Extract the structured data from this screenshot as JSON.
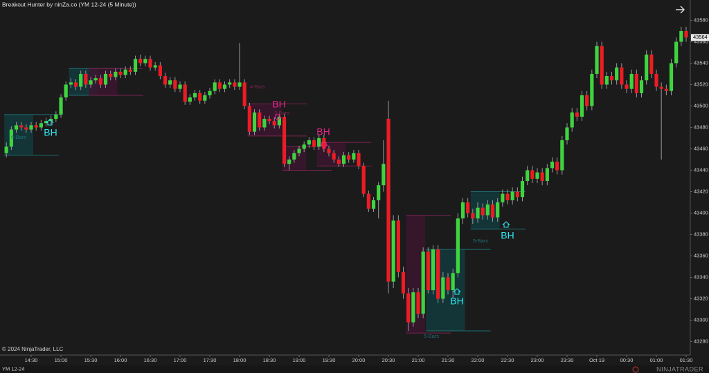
{
  "chart_data": {
    "type": "candlestick",
    "title": "Breakout Hunter by ninZa.co (YM 12-24 (5 Minute))",
    "copyright": "© 2024 NinjaTrader, LLC",
    "instrument": "YM 12-24",
    "logo": "NINJATRADER",
    "up_color": "#3fd43f",
    "down_color": "#ec1c24",
    "ylim": [
      43270,
      43599
    ],
    "yticks": [
      43280,
      43300,
      43320,
      43340,
      43360,
      43380,
      43400,
      43420,
      43440,
      43460,
      43480,
      43500,
      43520,
      43540,
      43560,
      43580
    ],
    "xlim": [
      0,
      137
    ],
    "xticks": [
      {
        "value": 5,
        "label": "14:30"
      },
      {
        "value": 11,
        "label": "15:00"
      },
      {
        "value": 17,
        "label": "15:30"
      },
      {
        "value": 23,
        "label": "16:00"
      },
      {
        "value": 29,
        "label": "16:30"
      },
      {
        "value": 35,
        "label": "17:00"
      },
      {
        "value": 41,
        "label": "17:30"
      },
      {
        "value": 47,
        "label": "18:00"
      },
      {
        "value": 53,
        "label": "18:30"
      },
      {
        "value": 59,
        "label": "19:00"
      },
      {
        "value": 65,
        "label": "19:30"
      },
      {
        "value": 71,
        "label": "20:00"
      },
      {
        "value": 77,
        "label": "20:30"
      },
      {
        "value": 83,
        "label": "21:00"
      },
      {
        "value": 89,
        "label": "21:30"
      },
      {
        "value": 95,
        "label": "22:00"
      },
      {
        "value": 101,
        "label": "22:30"
      },
      {
        "value": 107,
        "label": "23:00"
      },
      {
        "value": 113,
        "label": "23:30"
      },
      {
        "value": 119,
        "label": "Oct 19"
      },
      {
        "value": 125,
        "label": "00:30"
      },
      {
        "value": 131,
        "label": "01:00"
      },
      {
        "value": 137,
        "label": "01:30"
      }
    ],
    "candles": [
      [
        43456,
        43466,
        43452,
        43462
      ],
      [
        43462,
        43481,
        43459,
        43478
      ],
      [
        43478,
        43485,
        43475,
        43482
      ],
      [
        43482,
        43485,
        43477,
        43480
      ],
      [
        43480,
        43483,
        43475,
        43478
      ],
      [
        43478,
        43485,
        43475,
        43482
      ],
      [
        43482,
        43485,
        43477,
        43480
      ],
      [
        43480,
        43487,
        43477,
        43484
      ],
      [
        43484,
        43489,
        43481,
        43486
      ],
      [
        43486,
        43491,
        43483,
        43488
      ],
      [
        43488,
        43495,
        43485,
        43492
      ],
      [
        43492,
        43511,
        43489,
        43508
      ],
      [
        43508,
        43523,
        43505,
        43520
      ],
      [
        43520,
        43526,
        43517,
        43522
      ],
      [
        43522,
        43525,
        43515,
        43518
      ],
      [
        43518,
        43533,
        43515,
        43530
      ],
      [
        43530,
        43533,
        43517,
        43520
      ],
      [
        43520,
        43527,
        43517,
        43524
      ],
      [
        43524,
        43529,
        43521,
        43526
      ],
      [
        43526,
        43529,
        43517,
        43520
      ],
      [
        43520,
        43533,
        43517,
        43530
      ],
      [
        43530,
        43533,
        43524,
        43527
      ],
      [
        43527,
        43535,
        43524,
        43532
      ],
      [
        43532,
        43535,
        43526,
        43529
      ],
      [
        43529,
        43537,
        43526,
        43534
      ],
      [
        43534,
        43537,
        43529,
        43532
      ],
      [
        43532,
        43547,
        43529,
        43544
      ],
      [
        43544,
        43548,
        43537,
        43540
      ],
      [
        43540,
        43547,
        43537,
        43544
      ],
      [
        43544,
        43547,
        43533,
        43536
      ],
      [
        43536,
        43541,
        43533,
        43538
      ],
      [
        43538,
        43541,
        43525,
        43528
      ],
      [
        43528,
        43531,
        43517,
        43520
      ],
      [
        43520,
        43527,
        43517,
        43524
      ],
      [
        43524,
        43527,
        43513,
        43516
      ],
      [
        43516,
        43523,
        43513,
        43520
      ],
      [
        43520,
        43523,
        43501,
        43504
      ],
      [
        43504,
        43511,
        43501,
        43508
      ],
      [
        43508,
        43515,
        43505,
        43512
      ],
      [
        43512,
        43515,
        43502,
        43505
      ],
      [
        43505,
        43513,
        43502,
        43510
      ],
      [
        43510,
        43517,
        43507,
        43514
      ],
      [
        43514,
        43525,
        43511,
        43522
      ],
      [
        43522,
        43525,
        43513,
        43516
      ],
      [
        43516,
        43523,
        43513,
        43520
      ],
      [
        43520,
        43525,
        43517,
        43522
      ],
      [
        43522,
        43525,
        43515,
        43518
      ],
      [
        43518,
        43559,
        43515,
        43522
      ],
      [
        43522,
        43525,
        43497,
        43500
      ],
      [
        43500,
        43503,
        43473,
        43476
      ],
      [
        43476,
        43497,
        43473,
        43494
      ],
      [
        43494,
        43497,
        43477,
        43480
      ],
      [
        43480,
        43491,
        43477,
        43488
      ],
      [
        43488,
        43491,
        43483,
        43486
      ],
      [
        43486,
        43489,
        43479,
        43482
      ],
      [
        43482,
        43493,
        43479,
        43490
      ],
      [
        43490,
        43493,
        43443,
        43446
      ],
      [
        43446,
        43453,
        43440,
        43450
      ],
      [
        43450,
        43459,
        43447,
        43456
      ],
      [
        43456,
        43463,
        43453,
        43460
      ],
      [
        43460,
        43467,
        43457,
        43464
      ],
      [
        43464,
        43471,
        43461,
        43468
      ],
      [
        43468,
        43471,
        43459,
        43462
      ],
      [
        43462,
        43473,
        43459,
        43470
      ],
      [
        43470,
        43473,
        43457,
        43460
      ],
      [
        43460,
        43463,
        43453,
        43456
      ],
      [
        43456,
        43459,
        43447,
        43450
      ],
      [
        43450,
        43453,
        43443,
        43446
      ],
      [
        43446,
        43457,
        43443,
        43454
      ],
      [
        43454,
        43457,
        43447,
        43450
      ],
      [
        43450,
        43459,
        43447,
        43456
      ],
      [
        43456,
        43459,
        43441,
        43444
      ],
      [
        43444,
        43447,
        43415,
        43418
      ],
      [
        43418,
        43421,
        43401,
        43404
      ],
      [
        43404,
        43415,
        43401,
        43412
      ],
      [
        43412,
        43429,
        43395,
        43426
      ],
      [
        43426,
        43468,
        43420,
        43446
      ],
      [
        43488,
        43505,
        43325,
        43336
      ],
      [
        43336,
        43398,
        43330,
        43393
      ],
      [
        43393,
        43398,
        43340,
        43345
      ],
      [
        43345,
        43350,
        43320,
        43325
      ],
      [
        43325,
        43330,
        43290,
        43298
      ],
      [
        43298,
        43330,
        43294,
        43326
      ],
      [
        43326,
        43330,
        43302,
        43306
      ],
      [
        43306,
        43368,
        43302,
        43364
      ],
      [
        43364,
        43368,
        43325,
        43328
      ],
      [
        43328,
        43370,
        43324,
        43366
      ],
      [
        43366,
        43370,
        43316,
        43320
      ],
      [
        43320,
        43345,
        43316,
        43340
      ],
      [
        43340,
        43344,
        43324,
        43328
      ],
      [
        43328,
        43348,
        43320,
        43344
      ],
      [
        43344,
        43400,
        43340,
        43395
      ],
      [
        43395,
        43414,
        43390,
        43410
      ],
      [
        43410,
        43414,
        43396,
        43400
      ],
      [
        43400,
        43404,
        43390,
        43395
      ],
      [
        43395,
        43410,
        43391,
        43405
      ],
      [
        43405,
        43409,
        43394,
        43398
      ],
      [
        43398,
        43412,
        43394,
        43408
      ],
      [
        43408,
        43412,
        43392,
        43396
      ],
      [
        43396,
        43414,
        43392,
        43410
      ],
      [
        43410,
        43422,
        43406,
        43418
      ],
      [
        43418,
        43422,
        43408,
        43412
      ],
      [
        43412,
        43424,
        43408,
        43420
      ],
      [
        43420,
        43424,
        43411,
        43415
      ],
      [
        43415,
        43434,
        43411,
        43430
      ],
      [
        43430,
        43444,
        43426,
        43440
      ],
      [
        43440,
        43444,
        43428,
        43432
      ],
      [
        43432,
        43442,
        43428,
        43438
      ],
      [
        43438,
        43442,
        43426,
        43430
      ],
      [
        43430,
        43446,
        43426,
        43442
      ],
      [
        43442,
        43452,
        43438,
        43448
      ],
      [
        43448,
        43452,
        43436,
        43440
      ],
      [
        43440,
        43472,
        43436,
        43468
      ],
      [
        43468,
        43484,
        43464,
        43480
      ],
      [
        43480,
        43498,
        43476,
        43494
      ],
      [
        43494,
        43498,
        43486,
        43490
      ],
      [
        43490,
        43514,
        43486,
        43510
      ],
      [
        43510,
        43514,
        43496,
        43500
      ],
      [
        43500,
        43534,
        43496,
        43530
      ],
      [
        43530,
        43560,
        43526,
        43556
      ],
      [
        43556,
        43560,
        43516,
        43520
      ],
      [
        43520,
        43532,
        43516,
        43528
      ],
      [
        43528,
        43532,
        43520,
        43524
      ],
      [
        43524,
        43540,
        43520,
        43536
      ],
      [
        43536,
        43540,
        43516,
        43520
      ],
      [
        43520,
        43524,
        43512,
        43516
      ],
      [
        43516,
        43534,
        43512,
        43530
      ],
      [
        43530,
        43534,
        43508,
        43512
      ],
      [
        43512,
        43528,
        43508,
        43524
      ],
      [
        43524,
        43552,
        43520,
        43548
      ],
      [
        43548,
        43552,
        43526,
        43530
      ],
      [
        43530,
        43534,
        43514,
        43518
      ],
      [
        43518,
        43522,
        43450,
        43516
      ],
      [
        43516,
        43520,
        43510,
        43514
      ],
      [
        43514,
        43544,
        43510,
        43540
      ],
      [
        43540,
        43564,
        43536,
        43560
      ],
      [
        43560,
        43574,
        43556,
        43570
      ],
      [
        43570,
        43574,
        43560,
        43564
      ]
    ],
    "annotations": [
      {
        "text": "BH",
        "color": "#2ee6f0"
      },
      {
        "text": "BH",
        "color": "#e8268a"
      },
      {
        "text": "BH",
        "color": "#e8268a"
      },
      {
        "text": "BH",
        "color": "#2ee6f0"
      },
      {
        "text": "BH",
        "color": "#2ee6f0"
      },
      {
        "text": "6-Bars",
        "color": "#1f6f75"
      },
      {
        "text": "4-Bars",
        "color": "#7a2350"
      },
      {
        "text": "3-Bars",
        "color": "#7a2350"
      },
      {
        "text": "5-Bars",
        "color": "#1f6f75"
      },
      {
        "text": "5-Bars",
        "color": "#1f6f75"
      }
    ]
  }
}
